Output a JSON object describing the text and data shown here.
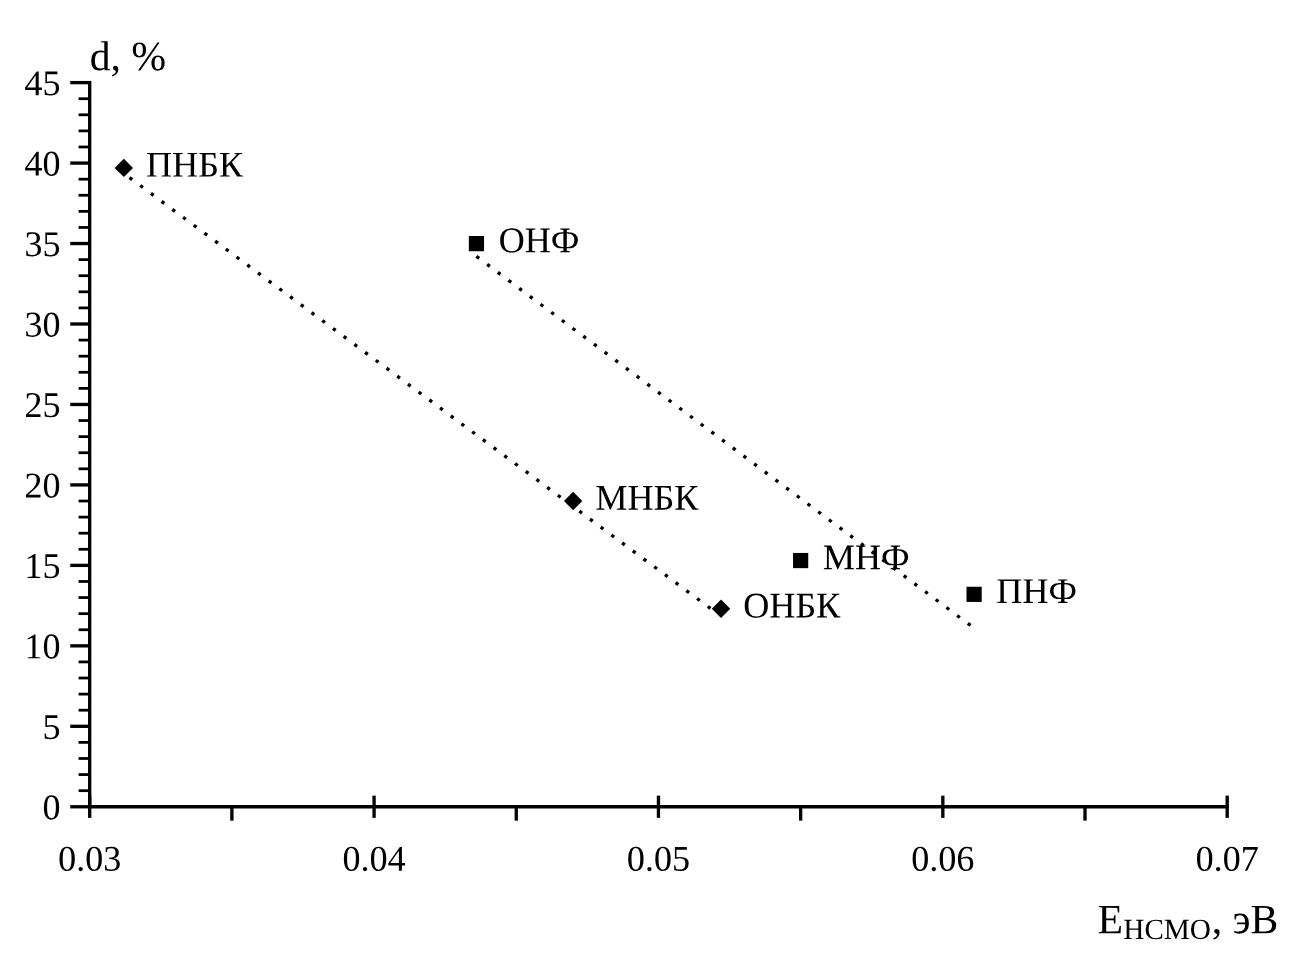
{
  "chart_data": {
    "type": "scatter",
    "xlabel": "E$_{НСМО}$, эВ",
    "ylabel": "d, %",
    "xlim": [
      0.03,
      0.07
    ],
    "ylim": [
      0,
      45
    ],
    "xticks": [
      0.03,
      {
        "value": 0.035,
        "label": null
      },
      0.04,
      {
        "value": 0.045,
        "label": null
      },
      0.05,
      {
        "value": 0.055,
        "label": null
      },
      0.06,
      {
        "value": 0.065,
        "label": null
      },
      0.07
    ],
    "yticks": [
      0,
      {
        "value": 1,
        "label": null
      },
      {
        "value": 2,
        "label": null
      },
      {
        "value": 3,
        "label": null
      },
      {
        "value": 4,
        "label": null
      },
      5,
      {
        "value": 6,
        "label": null
      },
      {
        "value": 7,
        "label": null
      },
      {
        "value": 8,
        "label": null
      },
      {
        "value": 9,
        "label": null
      },
      10,
      {
        "value": 11,
        "label": null
      },
      {
        "value": 12,
        "label": null
      },
      {
        "value": 13,
        "label": null
      },
      {
        "value": 14,
        "label": null
      },
      15,
      {
        "value": 16,
        "label": null
      },
      {
        "value": 17,
        "label": null
      },
      {
        "value": 18,
        "label": null
      },
      {
        "value": 19,
        "label": null
      },
      20,
      {
        "value": 21,
        "label": null
      },
      {
        "value": 22,
        "label": null
      },
      {
        "value": 23,
        "label": null
      },
      {
        "value": 24,
        "label": null
      },
      25,
      {
        "value": 26,
        "label": null
      },
      {
        "value": 27,
        "label": null
      },
      {
        "value": 28,
        "label": null
      },
      {
        "value": 29,
        "label": null
      },
      30,
      {
        "value": 31,
        "label": null
      },
      {
        "value": 32,
        "label": null
      },
      {
        "value": 33,
        "label": null
      },
      {
        "value": 34,
        "label": null
      },
      35,
      {
        "value": 36,
        "label": null
      },
      {
        "value": 37,
        "label": null
      },
      {
        "value": 38,
        "label": null
      },
      {
        "value": 39,
        "label": null
      },
      40,
      {
        "value": 41,
        "label": null
      },
      {
        "value": 42,
        "label": null
      },
      {
        "value": 43,
        "label": null
      },
      {
        "value": 44,
        "label": null
      },
      45
    ],
    "grid": false,
    "legend": false,
    "series": [
      {
        "marker": "diamond",
        "color": "#000000",
        "x": [
          0.0312,
          0.047,
          0.0522
        ],
        "values": [
          39.7,
          19,
          12.3
        ]
      },
      {
        "marker": "square",
        "color": "#000000",
        "x": [
          0.0436,
          0.055,
          0.0611
        ],
        "values": [
          35,
          15.3,
          13.2
        ]
      },
      {
        "type": "line",
        "marker": "none",
        "line_style": "dotted",
        "color": "#000000",
        "x": [
          0.0314,
          0.052
        ],
        "values": [
          39.1,
          12.1
        ]
      },
      {
        "type": "line",
        "marker": "none",
        "line_style": "dotted",
        "color": "#000000",
        "x": [
          0.0436,
          0.0611
        ],
        "values": [
          34.2,
          11.1
        ]
      }
    ],
    "annotations": [
      {
        "text": "ПНБК",
        "x": 0.0312,
        "y": 39.7
      },
      {
        "text": "МНБК",
        "x": 0.047,
        "y": 19
      },
      {
        "text": "ОНБК",
        "x": 0.0522,
        "y": 12.3
      },
      {
        "text": "ОНФ",
        "x": 0.0436,
        "y": 35
      },
      {
        "text": "МНФ",
        "x": 0.055,
        "y": 15.3
      },
      {
        "text": "ПНФ",
        "x": 0.0611,
        "y": 13.2
      }
    ]
  }
}
